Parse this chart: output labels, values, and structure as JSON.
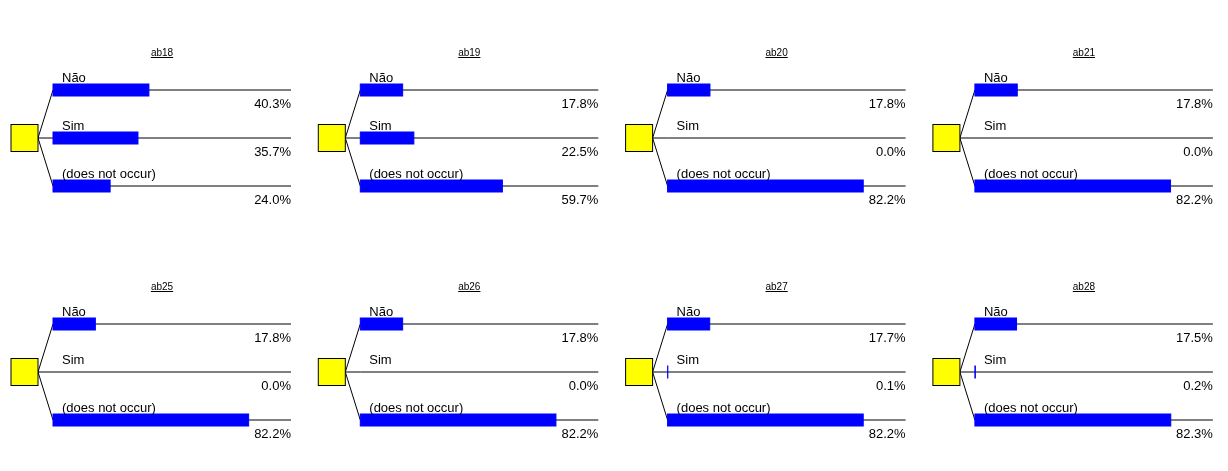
{
  "chart_data": [
    {
      "type": "bar",
      "orientation": "horizontal",
      "title": "ab18",
      "categories": [
        "Não",
        "Sim",
        "(does not occur)"
      ],
      "values": [
        40.3,
        35.7,
        24.0
      ],
      "value_labels": [
        "40.3%",
        "35.7%",
        "24.0%"
      ],
      "color": "#0000ff",
      "xlim": [
        0,
        100
      ]
    },
    {
      "type": "bar",
      "orientation": "horizontal",
      "title": "ab19",
      "categories": [
        "Não",
        "Sim",
        "(does not occur)"
      ],
      "values": [
        17.8,
        22.5,
        59.7
      ],
      "value_labels": [
        "17.8%",
        "22.5%",
        "59.7%"
      ],
      "color": "#0000ff",
      "xlim": [
        0,
        100
      ]
    },
    {
      "type": "bar",
      "orientation": "horizontal",
      "title": "ab20",
      "categories": [
        "Não",
        "Sim",
        "(does not occur)"
      ],
      "values": [
        17.8,
        0.0,
        82.2
      ],
      "value_labels": [
        "17.8%",
        "0.0%",
        "82.2%"
      ],
      "color": "#0000ff",
      "xlim": [
        0,
        100
      ]
    },
    {
      "type": "bar",
      "orientation": "horizontal",
      "title": "ab21",
      "categories": [
        "Não",
        "Sim",
        "(does not occur)"
      ],
      "values": [
        17.8,
        0.0,
        82.2
      ],
      "value_labels": [
        "17.8%",
        "0.0%",
        "82.2%"
      ],
      "color": "#0000ff",
      "xlim": [
        0,
        100
      ]
    },
    {
      "type": "bar",
      "orientation": "horizontal",
      "title": "ab25",
      "categories": [
        "Não",
        "Sim",
        "(does not occur)"
      ],
      "values": [
        17.8,
        0.0,
        82.2
      ],
      "value_labels": [
        "17.8%",
        "0.0%",
        "82.2%"
      ],
      "color": "#0000ff",
      "xlim": [
        0,
        100
      ]
    },
    {
      "type": "bar",
      "orientation": "horizontal",
      "title": "ab26",
      "categories": [
        "Não",
        "Sim",
        "(does not occur)"
      ],
      "values": [
        17.8,
        0.0,
        82.2
      ],
      "value_labels": [
        "17.8%",
        "0.0%",
        "82.2%"
      ],
      "color": "#0000ff",
      "xlim": [
        0,
        100
      ]
    },
    {
      "type": "bar",
      "orientation": "horizontal",
      "title": "ab27",
      "categories": [
        "Não",
        "Sim",
        "(does not occur)"
      ],
      "values": [
        17.7,
        0.1,
        82.2
      ],
      "value_labels": [
        "17.7%",
        "0.1%",
        "82.2%"
      ],
      "color": "#0000ff",
      "xlim": [
        0,
        100
      ]
    },
    {
      "type": "bar",
      "orientation": "horizontal",
      "title": "ab28",
      "categories": [
        "Não",
        "Sim",
        "(does not occur)"
      ],
      "values": [
        17.5,
        0.2,
        82.3
      ],
      "value_labels": [
        "17.5%",
        "0.2%",
        "82.3%"
      ],
      "color": "#0000ff",
      "xlim": [
        0,
        100
      ]
    }
  ]
}
